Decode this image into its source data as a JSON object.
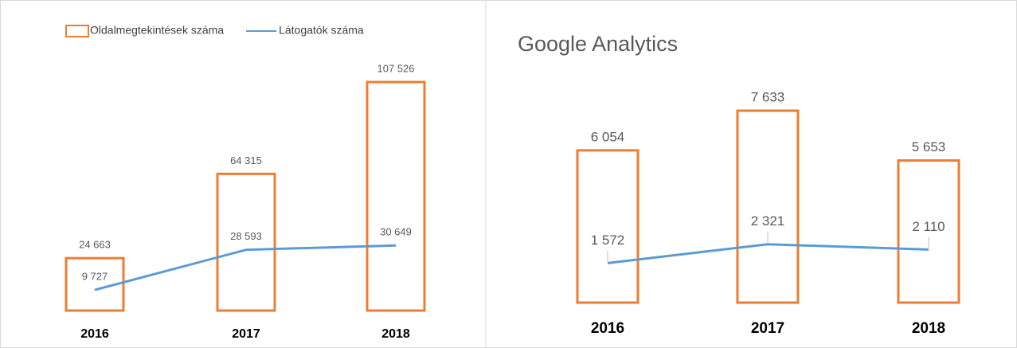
{
  "chart_data": [
    {
      "type": "bar",
      "legend": "top",
      "categories": [
        "2016",
        "2017",
        "2018"
      ],
      "series": [
        {
          "name": "Oldalmegtekintések száma",
          "type": "bar",
          "color": "#ed7d31",
          "values": [
            24663,
            64315,
            107526
          ],
          "value_labels": [
            "24 663",
            "64 315",
            "107 526"
          ]
        },
        {
          "name": "Látogatók száma",
          "type": "line",
          "color": "#5b9bd5",
          "values": [
            9727,
            28593,
            30649
          ],
          "value_labels": [
            "9 727",
            "28 593",
            "30 649"
          ]
        }
      ]
    },
    {
      "type": "bar",
      "title": "Google Analytics",
      "categories": [
        "2016",
        "2017",
        "2018"
      ],
      "series": [
        {
          "type": "bar",
          "color": "#ed7d31",
          "values": [
            6054,
            7633,
            5653
          ],
          "value_labels": [
            "6 054",
            "7 633",
            "5 653"
          ]
        },
        {
          "type": "line",
          "color": "#5b9bd5",
          "values": [
            1572,
            2321,
            2110
          ],
          "value_labels": [
            "1 572",
            "2 321",
            "2 110"
          ]
        }
      ]
    }
  ]
}
